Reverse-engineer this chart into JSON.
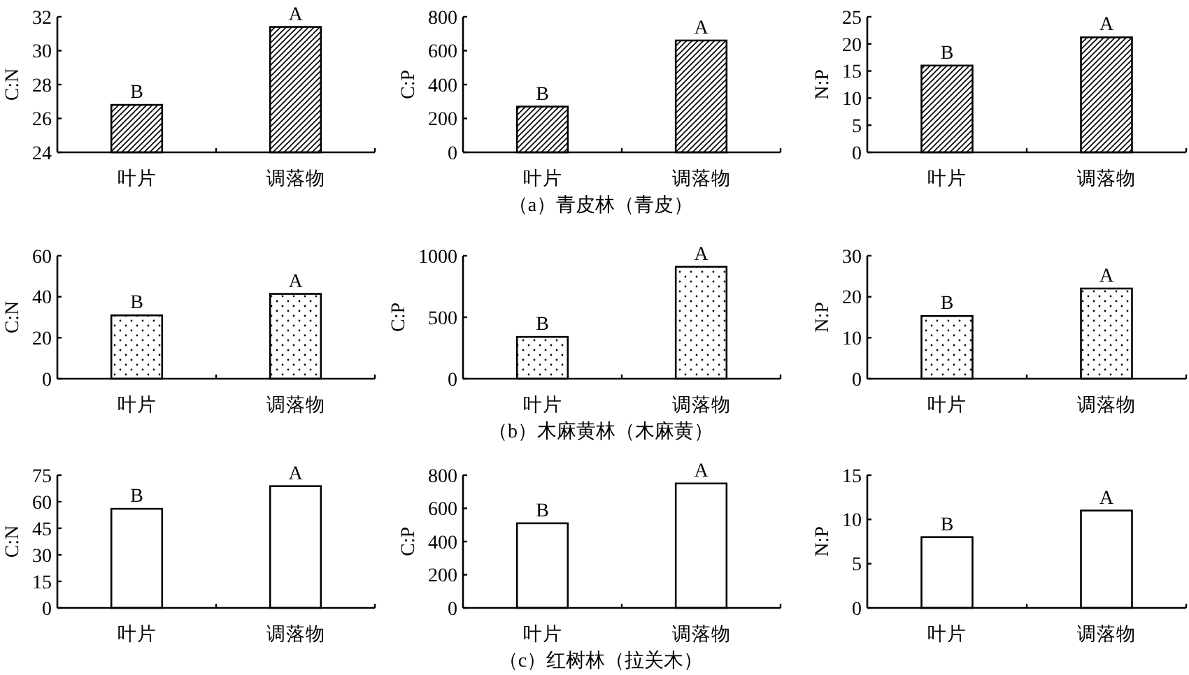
{
  "chart_data": [
    {
      "type": "bar",
      "categories": [
        "叶片",
        "调落物"
      ],
      "values": [
        26.8,
        31.4
      ],
      "color": "#000000",
      "ylabel": "C:N",
      "ylim": [
        24,
        32
      ],
      "yticks": [
        24,
        26,
        28,
        30,
        32
      ],
      "annotations": [
        {
          "text": "B",
          "x": "叶片",
          "y": 26.8
        },
        {
          "text": "A",
          "x": "调落物",
          "y": 31.4
        }
      ]
    },
    {
      "type": "bar",
      "categories": [
        "叶片",
        "调落物"
      ],
      "values": [
        270,
        660
      ],
      "color": "#000000",
      "ylabel": "C:P",
      "ylim": [
        0,
        800
      ],
      "yticks": [
        0,
        200,
        400,
        600,
        800
      ],
      "annotations": [
        {
          "text": "B",
          "x": "叶片",
          "y": 270
        },
        {
          "text": "A",
          "x": "调落物",
          "y": 660
        },
        "（a）青皮林（青皮）"
      ]
    },
    {
      "type": "bar",
      "categories": [
        "叶片",
        "调落物"
      ],
      "values": [
        16.0,
        21.2
      ],
      "color": "#000000",
      "ylabel": "N:P",
      "ylim": [
        0,
        25
      ],
      "yticks": [
        0,
        5,
        10,
        15,
        20,
        25
      ],
      "annotations": [
        {
          "text": "B",
          "x": "叶片",
          "y": 16.0
        },
        {
          "text": "A",
          "x": "调落物",
          "y": 21.2
        }
      ]
    },
    {
      "type": "bar",
      "categories": [
        "叶片",
        "调落物"
      ],
      "values": [
        30.9,
        41.4
      ],
      "color": "#000000",
      "ylabel": "C:N",
      "ylim": [
        0,
        60
      ],
      "yticks": [
        0,
        20,
        40,
        60
      ],
      "annotations": [
        {
          "text": "B",
          "x": "叶片",
          "y": 30.9
        },
        {
          "text": "A",
          "x": "调落物",
          "y": 41.4
        }
      ]
    },
    {
      "type": "bar",
      "categories": [
        "叶片",
        "调落物"
      ],
      "values": [
        340,
        910
      ],
      "color": "#000000",
      "ylabel": "C:P",
      "ylim": [
        0,
        1000
      ],
      "yticks": [
        0,
        500,
        1000
      ],
      "annotations": [
        {
          "text": "B",
          "x": "叶片",
          "y": 340
        },
        {
          "text": "A",
          "x": "调落物",
          "y": 910
        },
        "（b）木麻黄林（木麻黄）"
      ]
    },
    {
      "type": "bar",
      "categories": [
        "叶片",
        "调落物"
      ],
      "values": [
        15.3,
        22.0
      ],
      "color": "#000000",
      "ylabel": "N:P",
      "ylim": [
        0,
        30
      ],
      "yticks": [
        0,
        10,
        20,
        30
      ],
      "annotations": [
        {
          "text": "B",
          "x": "叶片",
          "y": 15.3
        },
        {
          "text": "A",
          "x": "调落物",
          "y": 22.0
        }
      ]
    },
    {
      "type": "bar",
      "categories": [
        "叶片",
        "调落物"
      ],
      "values": [
        56.0,
        68.8
      ],
      "color": "#ffffff",
      "ylabel": "C:N",
      "ylim": [
        0,
        75
      ],
      "yticks": [
        0,
        15,
        30,
        45,
        60,
        75
      ],
      "annotations": [
        {
          "text": "B",
          "x": "叶片",
          "y": 56.0
        },
        {
          "text": "A",
          "x": "调落物",
          "y": 68.8
        }
      ]
    },
    {
      "type": "bar",
      "categories": [
        "叶片",
        "调落物"
      ],
      "values": [
        510,
        750
      ],
      "color": "#ffffff",
      "ylabel": "C:P",
      "ylim": [
        0,
        800
      ],
      "yticks": [
        0,
        200,
        400,
        600,
        800
      ],
      "annotations": [
        {
          "text": "B",
          "x": "叶片",
          "y": 510
        },
        {
          "text": "A",
          "x": "调落物",
          "y": 750
        },
        "（c）红树林（拉关木）"
      ]
    },
    {
      "type": "bar",
      "categories": [
        "叶片",
        "调落物"
      ],
      "values": [
        8.0,
        11.0
      ],
      "color": "#ffffff",
      "ylabel": "N:P",
      "ylim": [
        0,
        15
      ],
      "yticks": [
        0,
        5,
        10,
        15
      ],
      "annotations": [
        {
          "text": "B",
          "x": "叶片",
          "y": 8.0
        },
        {
          "text": "A",
          "x": "调落物",
          "y": 11.0
        }
      ]
    }
  ]
}
